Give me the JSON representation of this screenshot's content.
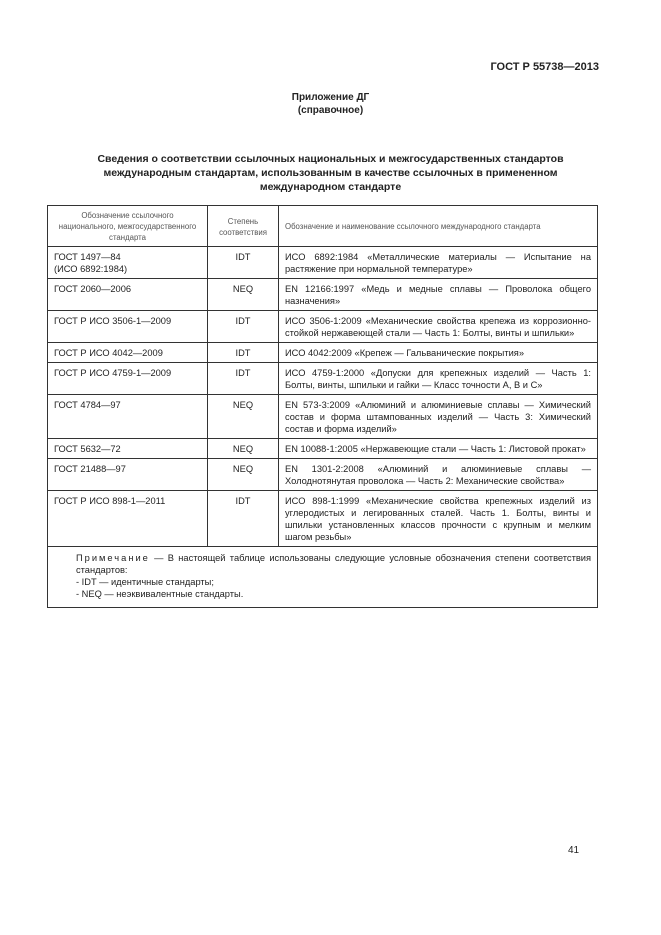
{
  "header": {
    "doc_code": "ГОСТ Р 55738—2013"
  },
  "appendix": {
    "title": "Приложение ДГ",
    "subtitle": "(справочное)"
  },
  "heading": "Сведения о соответствии ссылочных национальных и межгосударственных стандартов международным стандартам, использованным в качестве ссылочных в примененном международном стандарте",
  "table": {
    "columns": [
      "Обозначение ссылочного национального, межгосударственного стандарта",
      "Степень соответствия",
      "Обозначение и наименование ссылочного международного стандарта"
    ],
    "rows": [
      {
        "ref": "ГОСТ 1497—84",
        "ref2": "(ИСО 6892:1984)",
        "degree": "IDT",
        "intl": "ИСО 6892:1984 «Металлические материалы — Испытание на растяжение при нормальной температуре»"
      },
      {
        "ref": "ГОСТ 2060—2006",
        "degree": "NEQ",
        "intl": "EN 12166:1997 «Медь и медные сплавы — Проволока общего назначения»"
      },
      {
        "ref": "ГОСТ Р ИСО 3506-1—2009",
        "degree": "IDT",
        "intl": "ИСО 3506-1:2009 «Механические свойства крепежа из коррозионно-стойкой нержавеющей стали — Часть 1: Болты, винты и шпильки»"
      },
      {
        "ref": "ГОСТ Р ИСО 4042—2009",
        "degree": "IDT",
        "intl": "ИСО 4042:2009 «Крепеж — Гальванические покрытия»"
      },
      {
        "ref": "ГОСТ Р ИСО 4759-1—2009",
        "degree": "IDT",
        "intl": "ИСО 4759-1:2000 «Допуски для крепежных изделий — Часть 1: Болты, винты, шпильки и гайки — Класс точности А, В и С»"
      },
      {
        "ref": "ГОСТ 4784—97",
        "degree": "NEQ",
        "intl": "EN 573-3:2009 «Алюминий и алюминиевые сплавы — Химический состав и форма штампованных изделий — Часть 3: Химический состав и форма изделий»"
      },
      {
        "ref": "ГОСТ 5632—72",
        "degree": "NEQ",
        "intl": "EN 10088-1:2005 «Нержавеющие стали — Часть 1: Листовой прокат»"
      },
      {
        "ref": "ГОСТ 21488—97",
        "degree": "NEQ",
        "intl": "EN 1301-2:2008 «Алюминий и алюминиевые сплавы — Холоднотянутая проволока — Часть 2: Механические свойства»"
      },
      {
        "ref": "ГОСТ Р ИСО 898-1—2011",
        "degree": "IDT",
        "intl": "ИСО 898-1:1999 «Механические свойства крепежных изделий из углеродистых и легированных сталей. Часть 1. Болты, винты и шпильки установленных классов прочности с крупным и мелким шагом резьбы»"
      }
    ],
    "note": {
      "label": "Примечание",
      "text": "— В настоящей таблице использованы следующие условные обозначения степени соответствия стандартов:",
      "items": [
        "- IDT — идентичные стандарты;",
        "- NEQ — неэквивалентные стандарты."
      ]
    }
  },
  "footer": {
    "page_number": "41"
  }
}
